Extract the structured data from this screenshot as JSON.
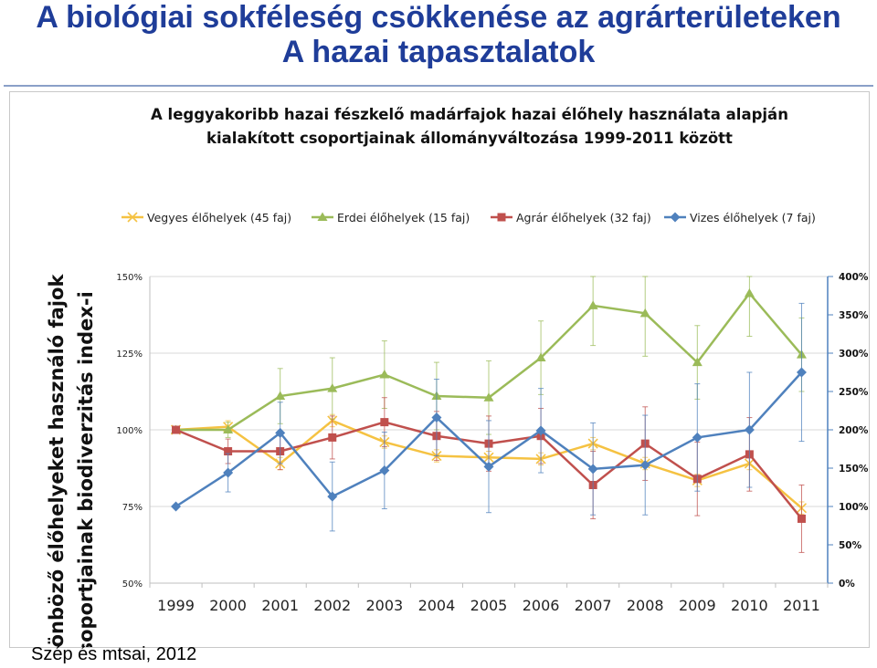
{
  "slide": {
    "title_line1": "A biológiai sokféleség csökkenése az agrárterületeken",
    "title_line2": "A hazai tapasztalatok",
    "source": "Szép és mtsai, 2012"
  },
  "chart_data": {
    "type": "line",
    "title_line1": "A leggyakoribb hazai fészkelő madárfajok hazai élőhely használata alapján",
    "title_line2": "kialakított csoportjainak állományváltozása 1999-2011 között",
    "ylabel_line1": "Különböző élőhelyeket használó fajok",
    "ylabel_line2": "csoportjainak biodiverzitás index-i",
    "categories": [
      "1999",
      "2000",
      "2001",
      "2002",
      "2003",
      "2004",
      "2005",
      "2006",
      "2007",
      "2008",
      "2009",
      "2010",
      "2011"
    ],
    "left_axis": {
      "ylim": [
        0.5,
        1.5
      ],
      "ticks": [
        0.5,
        0.75,
        1.0,
        1.25,
        1.5
      ],
      "tick_labels": [
        "50%",
        "75%",
        "100%",
        "125%",
        "150%"
      ]
    },
    "right_axis": {
      "ylim": [
        0,
        4
      ],
      "ticks": [
        0,
        0.5,
        1,
        1.5,
        2,
        2.5,
        3,
        3.5,
        4
      ],
      "tick_labels": [
        "0%",
        "50%",
        "100%",
        "150%",
        "200%",
        "250%",
        "300%",
        "350%",
        "400%"
      ]
    },
    "grid": true,
    "legend_position": "top",
    "series": [
      {
        "name": "Vegyes élőhelyek (45 faj)",
        "color": "#f5c242",
        "marker": "x",
        "axis": "left",
        "values": [
          1.0,
          1.01,
          0.89,
          1.03,
          0.96,
          0.915,
          0.91,
          0.905,
          0.955,
          0.89,
          0.835,
          0.89,
          0.745
        ],
        "err": [
          0,
          0.02,
          0.02,
          0.02,
          0.02,
          0.02,
          0.02,
          0.02,
          0.02,
          0.02,
          0.02,
          0.02,
          0.02
        ]
      },
      {
        "name": "Erdei élőhelyek (15 faj)",
        "color": "#9bbb59",
        "marker": "triangle",
        "axis": "left",
        "values": [
          1.0,
          1.0,
          1.11,
          1.135,
          1.18,
          1.11,
          1.105,
          1.235,
          1.405,
          1.38,
          1.22,
          1.445,
          1.245
        ],
        "err": [
          0,
          0.025,
          0.09,
          0.1,
          0.11,
          0.11,
          0.12,
          0.12,
          0.13,
          0.14,
          0.12,
          0.14,
          0.12
        ]
      },
      {
        "name": "Agrár élőhelyek (32 faj)",
        "color": "#c0504d",
        "marker": "square",
        "axis": "left",
        "values": [
          1.0,
          0.93,
          0.93,
          0.975,
          1.025,
          0.98,
          0.955,
          0.98,
          0.82,
          0.955,
          0.84,
          0.92,
          0.71
        ],
        "err": [
          0,
          0.04,
          0.06,
          0.07,
          0.08,
          0.08,
          0.09,
          0.09,
          0.11,
          0.12,
          0.12,
          0.12,
          0.11
        ]
      },
      {
        "name": "Vizes élőhelyek (7 faj)",
        "color": "#4f81bd",
        "marker": "diamond",
        "axis": "right",
        "values": [
          1.0,
          1.44,
          1.96,
          1.13,
          1.47,
          2.16,
          1.52,
          1.99,
          1.49,
          1.54,
          1.9,
          2.0,
          2.75
        ],
        "err": [
          0,
          0.25,
          0.4,
          0.45,
          0.5,
          0.5,
          0.6,
          0.55,
          0.6,
          0.65,
          0.7,
          0.75,
          0.9
        ]
      }
    ]
  }
}
